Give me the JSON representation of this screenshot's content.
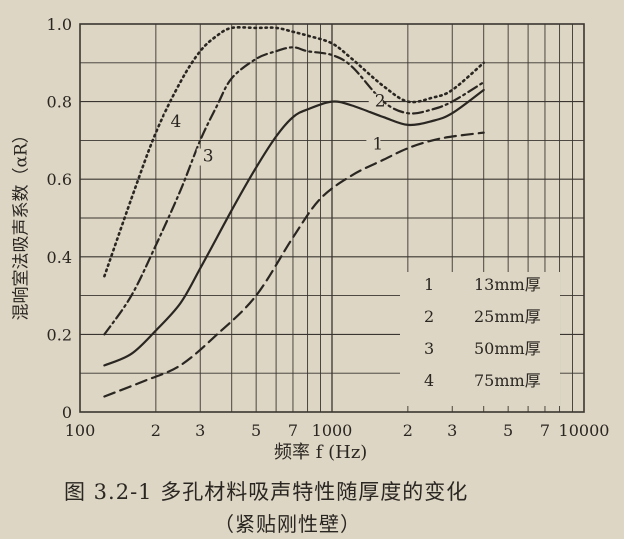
{
  "caption": "图 3.2-1   多孔材料吸声特性随厚度的变化",
  "subcaption": "（紧贴刚性壁）",
  "chart_data": {
    "type": "line",
    "xscale": "log",
    "xlim": [
      100,
      10000
    ],
    "ylim": [
      0,
      1.0
    ],
    "xlabel": "频率 f (Hz)",
    "ylabel": "混响室法吸声系数（αR）",
    "x_tick_values": [
      100,
      200,
      300,
      500,
      700,
      1000,
      2000,
      3000,
      5000,
      7000,
      10000
    ],
    "x_tick_labels": [
      "100",
      "2",
      "3",
      "5",
      "7",
      "1000",
      "2",
      "3",
      "5",
      "7",
      "10000"
    ],
    "y_ticks": [
      0,
      0.2,
      0.4,
      0.6,
      0.8,
      1.0
    ],
    "y_tick_labels": [
      "0",
      "0.2",
      "0.4",
      "0.6",
      "0.8",
      "1.0"
    ],
    "grid": true,
    "legend": {
      "position": "bottom-right",
      "entries": [
        {
          "num": "1",
          "label": "13mm厚"
        },
        {
          "num": "2",
          "label": "25mm厚"
        },
        {
          "num": "3",
          "label": "50mm厚"
        },
        {
          "num": "4",
          "label": "75mm厚"
        }
      ]
    },
    "series": [
      {
        "name": "13mm厚",
        "label": "1",
        "style": "dashed",
        "x": [
          125,
          180,
          250,
          350,
          500,
          700,
          900,
          1200,
          1600,
          2000,
          2500,
          3000,
          4000
        ],
        "y": [
          0.04,
          0.08,
          0.12,
          0.2,
          0.3,
          0.45,
          0.55,
          0.61,
          0.65,
          0.68,
          0.7,
          0.71,
          0.72
        ]
      },
      {
        "name": "25mm厚",
        "label": "2",
        "style": "solid",
        "x": [
          125,
          160,
          200,
          250,
          300,
          400,
          500,
          600,
          700,
          800,
          1000,
          1200,
          1600,
          2000,
          2500,
          3000,
          4000
        ],
        "y": [
          0.12,
          0.15,
          0.21,
          0.28,
          0.37,
          0.52,
          0.63,
          0.71,
          0.76,
          0.78,
          0.8,
          0.79,
          0.76,
          0.74,
          0.75,
          0.77,
          0.83
        ]
      },
      {
        "name": "50mm厚",
        "label": "3",
        "style": "dashdot",
        "x": [
          125,
          160,
          200,
          250,
          300,
          350,
          400,
          500,
          600,
          700,
          800,
          1000,
          1200,
          1600,
          2000,
          2500,
          3000,
          4000
        ],
        "y": [
          0.2,
          0.3,
          0.43,
          0.57,
          0.7,
          0.79,
          0.86,
          0.91,
          0.93,
          0.94,
          0.93,
          0.92,
          0.89,
          0.8,
          0.77,
          0.78,
          0.8,
          0.85
        ]
      },
      {
        "name": "75mm厚",
        "label": "4",
        "style": "dotted",
        "x": [
          125,
          160,
          200,
          250,
          300,
          350,
          400,
          500,
          600,
          700,
          800,
          1000,
          1200,
          1600,
          2000,
          2500,
          3000,
          4000
        ],
        "y": [
          0.35,
          0.55,
          0.72,
          0.85,
          0.93,
          0.97,
          0.99,
          0.99,
          0.99,
          0.98,
          0.97,
          0.95,
          0.91,
          0.84,
          0.8,
          0.81,
          0.83,
          0.9
        ]
      }
    ]
  },
  "colors": {
    "ink": "#2a2622",
    "grid": "#3a3530",
    "paper": "#ddd6c4"
  }
}
